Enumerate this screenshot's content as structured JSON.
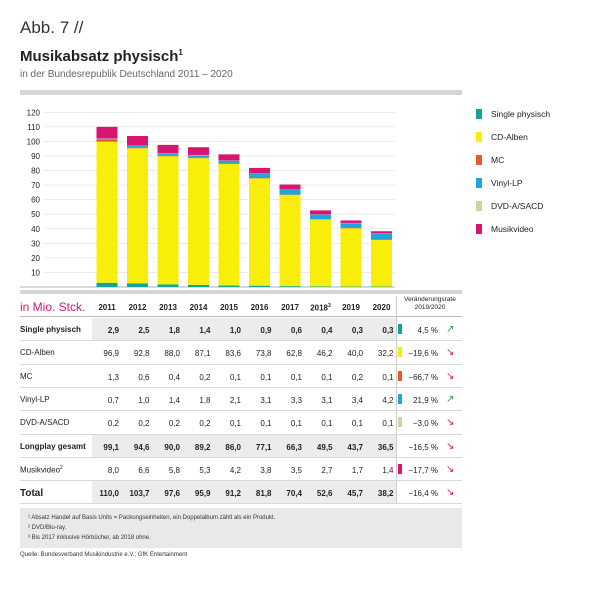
{
  "header": {
    "figure_label": "Abb. 7 //",
    "title": "Musikabsatz physisch",
    "title_footnote": "1",
    "subtitle": "in der Bundesrepublik Deutschland 2011 – 2020"
  },
  "chart_data": {
    "type": "bar",
    "stacked": true,
    "categories": [
      "2011",
      "2012",
      "2013",
      "2014",
      "2015",
      "2016",
      "2017",
      "2018",
      "2019",
      "2020"
    ],
    "category_footnotes": {
      "2018": "3"
    },
    "ylim": [
      0,
      120
    ],
    "yticks": [
      10,
      20,
      30,
      40,
      50,
      60,
      70,
      80,
      90,
      100,
      110,
      120
    ],
    "unit_label": "in Mio. Stck.",
    "change_header": "Veränderungsrate 2019/2020",
    "series": [
      {
        "name": "Single physisch",
        "color": "#12A39A",
        "values": [
          2.9,
          2.5,
          1.8,
          1.4,
          1.0,
          0.9,
          0.6,
          0.4,
          0.3,
          0.3
        ],
        "change": "4,5 %",
        "trend": "up"
      },
      {
        "name": "CD-Alben",
        "color": "#F8EE0A",
        "values": [
          96.9,
          92.8,
          88.0,
          87.1,
          83.6,
          73.8,
          62.8,
          46.2,
          40.0,
          32.2
        ],
        "change": "−19,6 %",
        "trend": "down"
      },
      {
        "name": "MC",
        "color": "#E8592A",
        "values": [
          1.3,
          0.6,
          0.4,
          0.2,
          0.1,
          0.1,
          0.1,
          0.1,
          0.2,
          0.1
        ],
        "change": "−66,7 %",
        "trend": "down"
      },
      {
        "name": "Vinyl-LP",
        "color": "#1FA6DD",
        "values": [
          0.7,
          1.0,
          1.4,
          1.8,
          2.1,
          3.1,
          3.3,
          3.1,
          3.4,
          4.2
        ],
        "change": "21,9 %",
        "trend": "up"
      },
      {
        "name": "DVD-A/SACD",
        "color": "#BFDCA0",
        "values": [
          0.2,
          0.2,
          0.2,
          0.2,
          0.1,
          0.1,
          0.1,
          0.1,
          0.1,
          0.1
        ],
        "change": "−3,0 %",
        "trend": "down"
      },
      {
        "name": "Musikvideo",
        "footnote": "2",
        "color": "#D9166F",
        "values": [
          8.0,
          6.6,
          5.8,
          5.3,
          4.2,
          3.8,
          3.5,
          2.7,
          1.7,
          1.4
        ],
        "change": "−17,7 %",
        "trend": "down"
      }
    ]
  },
  "table": {
    "rows": [
      {
        "label": "Single physisch",
        "bold": true,
        "shaded": true,
        "values": [
          "2,9",
          "2,5",
          "1,8",
          "1,4",
          "1,0",
          "0,9",
          "0,6",
          "0,4",
          "0,3",
          "0,3"
        ],
        "change": "4,5 %",
        "trend": "up",
        "color": "#12A39A"
      },
      {
        "label": "CD-Alben",
        "bold": false,
        "shaded": false,
        "values": [
          "96,9",
          "92,8",
          "88,0",
          "87,1",
          "83,6",
          "73,8",
          "62,8",
          "46,2",
          "40,0",
          "32,2"
        ],
        "change": "−19,6 %",
        "trend": "down",
        "color": "#F8EE0A"
      },
      {
        "label": "MC",
        "bold": false,
        "shaded": false,
        "values": [
          "1,3",
          "0,6",
          "0,4",
          "0,2",
          "0,1",
          "0,1",
          "0,1",
          "0,1",
          "0,2",
          "0,1"
        ],
        "change": "−66,7 %",
        "trend": "down",
        "color": "#E8592A"
      },
      {
        "label": "Vinyl-LP",
        "bold": false,
        "shaded": false,
        "values": [
          "0,7",
          "1,0",
          "1,4",
          "1,8",
          "2,1",
          "3,1",
          "3,3",
          "3,1",
          "3,4",
          "4,2"
        ],
        "change": "21,9 %",
        "trend": "up",
        "color": "#1FA6DD"
      },
      {
        "label": "DVD-A/SACD",
        "bold": false,
        "shaded": false,
        "values": [
          "0,2",
          "0,2",
          "0,2",
          "0,2",
          "0,1",
          "0,1",
          "0,1",
          "0,1",
          "0,1",
          "0,1"
        ],
        "change": "−3,0 %",
        "trend": "down",
        "color": "#BFDCA0"
      },
      {
        "label": "Longplay gesamt",
        "bold": true,
        "shaded": true,
        "values": [
          "99,1",
          "94,6",
          "90,0",
          "89,2",
          "86,0",
          "77,1",
          "66,3",
          "49,5",
          "43,7",
          "36,5"
        ],
        "change": "−16,5 %",
        "trend": "down",
        "color": ""
      },
      {
        "label": "Musikvideo",
        "footnote": "2",
        "bold": false,
        "shaded": false,
        "values": [
          "8,0",
          "6,6",
          "5,8",
          "5,3",
          "4,2",
          "3,8",
          "3,5",
          "2,7",
          "1,7",
          "1,4"
        ],
        "change": "−17,7 %",
        "trend": "down",
        "color": "#D9166F"
      },
      {
        "label": "Total",
        "bold": true,
        "shaded": true,
        "total": true,
        "values": [
          "110,0",
          "103,7",
          "97,6",
          "95,9",
          "91,2",
          "81,8",
          "70,4",
          "52,6",
          "45,7",
          "38,2"
        ],
        "change": "−16,4 %",
        "trend": "down",
        "color": ""
      }
    ]
  },
  "footnotes": [
    "¹ Absatz Handel auf Basis Units = Packungseinheiten, ein Doppelalbum zählt als ein Produkt.",
    "² DVD/Blu-ray.",
    "³ Bis 2017 inklusive Hörbücher, ab 2018 ohne."
  ],
  "source": "Quelle: Bundesverband Musikindustrie e.V.; GfK Entertainment",
  "colors": {
    "accent": "#D9166F",
    "trend_up": "#2E9E3E",
    "trend_down": "#D9166F",
    "row_shade": "#ECECEC",
    "rule": "#d6d6d6"
  }
}
